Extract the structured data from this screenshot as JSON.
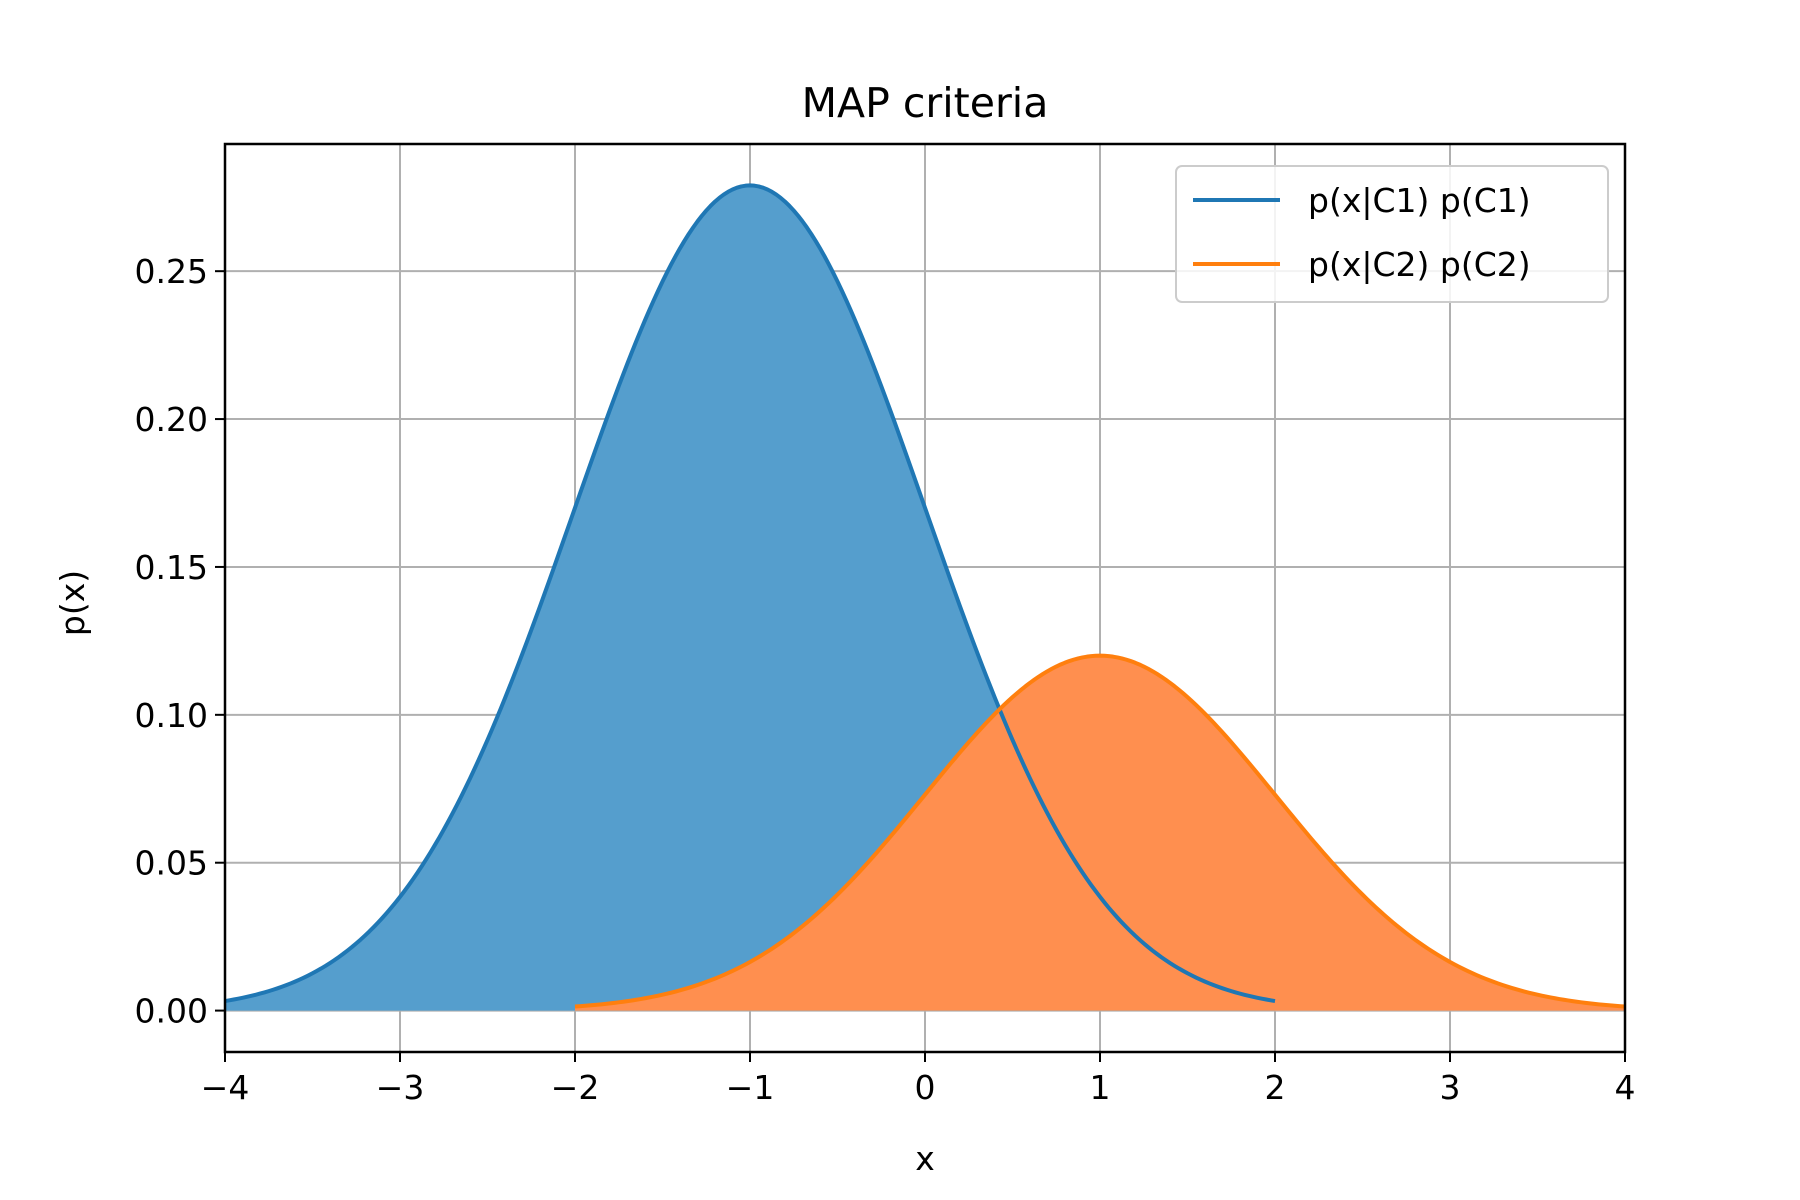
{
  "chart_data": {
    "type": "area",
    "title": "MAP criteria",
    "xlabel": "x",
    "ylabel": "p(x)",
    "xlim": [
      -4,
      4
    ],
    "ylim": [
      -0.014,
      0.293
    ],
    "grid": true,
    "legend_position": "top-right",
    "x_ticks": [
      -4,
      -3,
      -2,
      -1,
      0,
      1,
      2,
      3,
      4
    ],
    "x_tick_labels": [
      "−4",
      "−3",
      "−2",
      "−1",
      "0",
      "1",
      "2",
      "3",
      "4"
    ],
    "y_ticks": [
      0.0,
      0.05,
      0.1,
      0.15,
      0.2,
      0.25
    ],
    "y_tick_labels": [
      "0.00",
      "0.05",
      "0.10",
      "0.15",
      "0.20",
      "0.25"
    ],
    "series": [
      {
        "name": "p(x|C1) p(C1)",
        "color": "#1f77b4",
        "fill_color": "#559ecd",
        "x": [
          -4.0,
          -3.5,
          -3.0,
          -2.5,
          -2.0,
          -1.5,
          -1.0,
          -0.5,
          0.0,
          0.5,
          1.0,
          1.5,
          2.0
        ],
        "y": [
          0.003,
          0.012,
          0.038,
          0.09,
          0.17,
          0.246,
          0.279,
          0.246,
          0.17,
          0.09,
          0.038,
          0.012,
          0.003
        ]
      },
      {
        "name": "p(x|C2) p(C2)",
        "color": "#ff7f0e",
        "fill_color": "#ff8f4f",
        "x": [
          -2.0,
          -1.5,
          -1.0,
          -0.5,
          0.0,
          0.5,
          1.0,
          1.5,
          2.0,
          2.5,
          3.0,
          3.5,
          4.0
        ],
        "y": [
          0.001,
          0.005,
          0.016,
          0.039,
          0.073,
          0.106,
          0.12,
          0.106,
          0.073,
          0.039,
          0.016,
          0.005,
          0.001
        ]
      }
    ]
  }
}
